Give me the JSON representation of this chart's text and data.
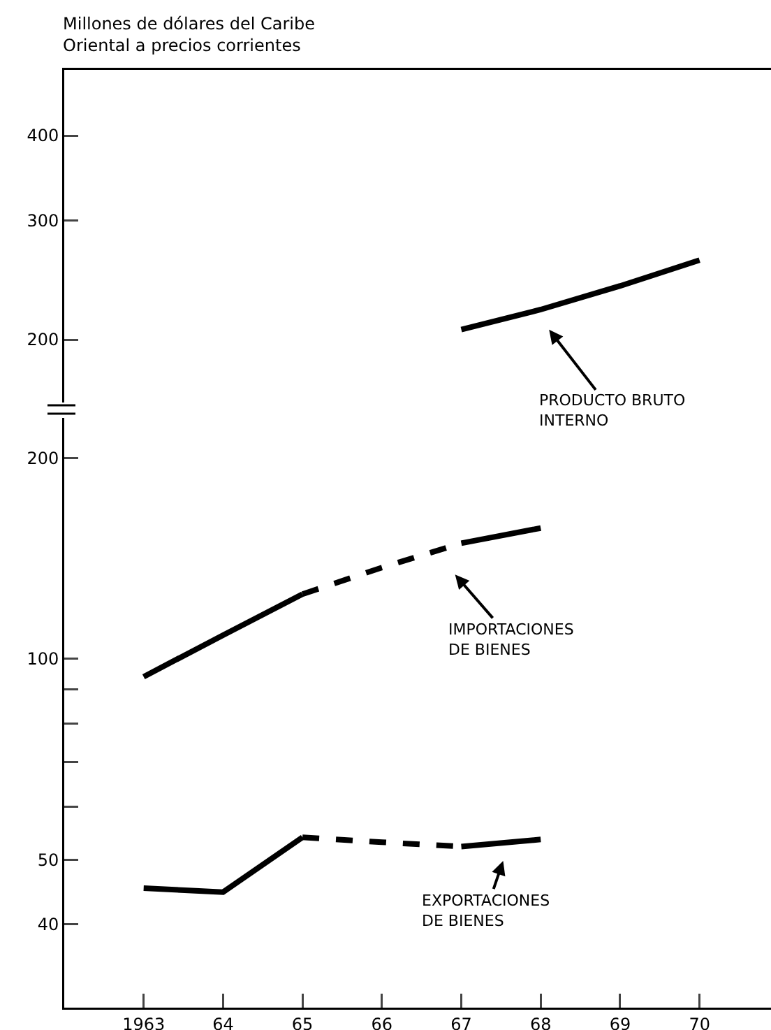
{
  "chart_data": [
    {
      "type": "line",
      "ylabel": "Millones de dólares del Caribe\nOriental a precios corrientes",
      "log": "y",
      "tick_labels": "y",
      "xlim": [
        1962,
        1970.9
      ],
      "ylim": [
        157,
        500
      ],
      "yticks": [
        200,
        300,
        400
      ],
      "series": [
        {
          "color": "#000000",
          "line_style": "solid",
          "x": [
            1967,
            1968,
            1969,
            1970
          ],
          "values": [
            207,
            221.5,
            240,
            262
          ]
        }
      ],
      "annotations": [
        "PRODUCTO BRUTO\nINTERNO"
      ]
    },
    {
      "type": "line",
      "log": "y",
      "xlim": [
        1962,
        1970.9
      ],
      "xticks": [
        1963,
        {
          "value": 1964,
          "label": "64"
        },
        {
          "value": 1965,
          "label": "65"
        },
        {
          "value": 1966,
          "label": "66"
        },
        {
          "value": 1967,
          "label": "67"
        },
        {
          "value": 1968,
          "label": "68"
        },
        {
          "value": 1969,
          "label": "69"
        },
        {
          "value": 1970,
          "label": "70"
        }
      ],
      "ylim": [
        30,
        233
      ],
      "yticks": [
        40,
        50,
        {
          "value": 60,
          "label": null
        },
        {
          "value": 70,
          "label": null
        },
        {
          "value": 80,
          "label": null
        },
        {
          "value": 90,
          "label": null
        },
        100,
        200
      ],
      "series": [
        {
          "color": "#000000",
          "line_style": "solid",
          "x": [
            1963,
            1964,
            1965
          ],
          "values": [
            94,
            108.5,
            125
          ]
        },
        {
          "color": "#000000",
          "line_style": "dashed",
          "x": [
            1965,
            1966,
            1967
          ],
          "values": [
            125,
            137,
            149
          ]
        },
        {
          "color": "#000000",
          "line_style": "solid",
          "x": [
            1967,
            1968
          ],
          "values": [
            149,
            157
          ]
        },
        {
          "color": "#000000",
          "line_style": "solid",
          "x": [
            1963,
            1964,
            1965
          ],
          "values": [
            45.3,
            44.7,
            54
          ]
        },
        {
          "color": "#000000",
          "line_style": "dashed",
          "x": [
            1965,
            1966,
            1967
          ],
          "values": [
            54,
            53.1,
            52.3
          ]
        },
        {
          "color": "#000000",
          "line_style": "solid",
          "x": [
            1967,
            1968
          ],
          "values": [
            52.3,
            53.6
          ]
        }
      ],
      "annotations": [
        "IMPORTACIONES\nDE BIENES",
        "EXPORTACIONES\nDE BIENES"
      ]
    }
  ]
}
